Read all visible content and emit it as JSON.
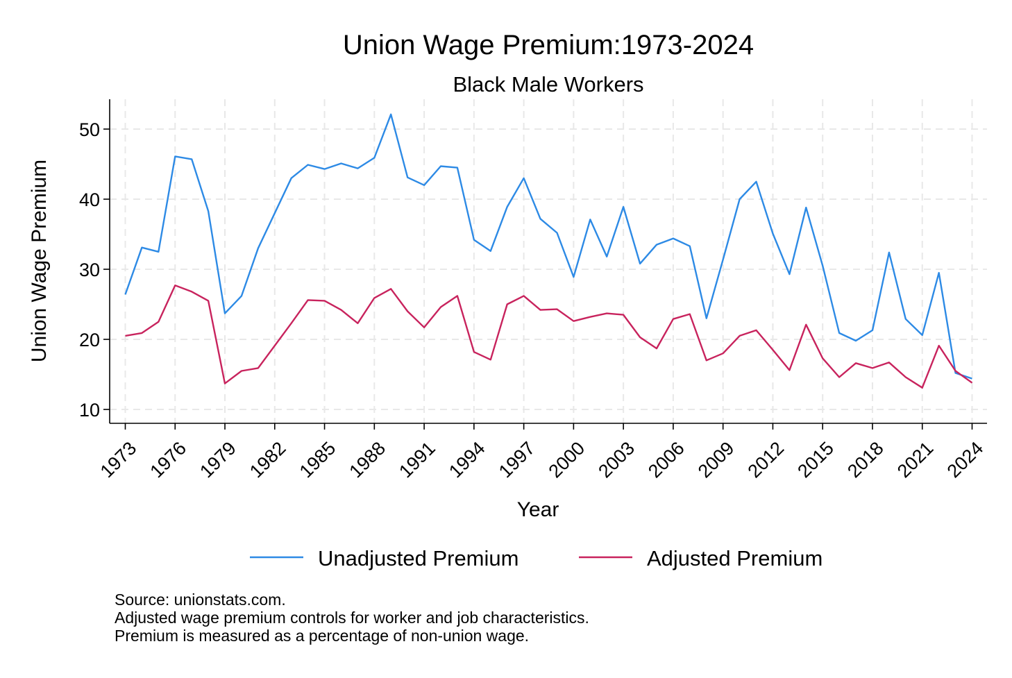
{
  "chart_data": {
    "type": "line",
    "title": "Union Wage Premium:1973-2024",
    "subtitle": "Black Male Workers",
    "xlabel": "Year",
    "ylabel": "Union Wage Premium",
    "xlim": [
      1973,
      2024
    ],
    "ylim": [
      8,
      54
    ],
    "x_ticks": [
      "1973",
      "1976",
      "1979",
      "1982",
      "1985",
      "1988",
      "1991",
      "1994",
      "1997",
      "2000",
      "2003",
      "2006",
      "2009",
      "2012",
      "2015",
      "2018",
      "2021",
      "2024"
    ],
    "y_ticks": [
      "10",
      "20",
      "30",
      "40",
      "50"
    ],
    "grid": true,
    "legend_position": "bottom",
    "x": [
      1973,
      1974,
      1975,
      1976,
      1977,
      1978,
      1979,
      1980,
      1981,
      1982,
      1983,
      1984,
      1985,
      1986,
      1987,
      1988,
      1989,
      1990,
      1991,
      1992,
      1993,
      1994,
      1995,
      1996,
      1997,
      1998,
      1999,
      2000,
      2001,
      2002,
      2003,
      2004,
      2005,
      2006,
      2007,
      2008,
      2009,
      2010,
      2011,
      2012,
      2013,
      2014,
      2015,
      2016,
      2017,
      2018,
      2019,
      2020,
      2021,
      2022,
      2023,
      2024
    ],
    "series": [
      {
        "name": "Unadjusted Premium",
        "color": "#2d8ae5",
        "values": [
          26.4,
          33.1,
          32.5,
          46.1,
          45.7,
          38.3,
          23.7,
          26.2,
          33.0,
          38.0,
          43.0,
          44.9,
          44.3,
          45.1,
          44.4,
          45.9,
          52.1,
          43.1,
          42.0,
          44.7,
          44.5,
          34.2,
          32.6,
          38.9,
          43.0,
          37.2,
          35.2,
          28.9,
          37.1,
          31.8,
          38.9,
          30.8,
          33.5,
          34.4,
          33.3,
          23.0,
          31.4,
          40.0,
          42.5,
          35.1,
          29.3,
          38.8,
          30.5,
          20.9,
          19.8,
          21.3,
          32.4,
          22.9,
          20.6,
          29.5,
          15.2,
          14.4
        ]
      },
      {
        "name": "Adjusted Premium",
        "color": "#c8235d",
        "values": [
          20.5,
          20.9,
          22.5,
          27.7,
          26.8,
          25.5,
          13.7,
          15.5,
          15.9,
          19.1,
          22.3,
          25.6,
          25.5,
          24.2,
          22.3,
          25.9,
          27.2,
          24.0,
          21.7,
          24.6,
          26.2,
          18.2,
          17.1,
          25.0,
          26.2,
          24.2,
          24.3,
          22.6,
          23.2,
          23.7,
          23.5,
          20.3,
          18.7,
          22.9,
          23.6,
          17.0,
          18.0,
          20.5,
          21.3,
          18.5,
          15.6,
          22.1,
          17.3,
          14.6,
          16.6,
          15.9,
          16.7,
          14.6,
          13.1,
          19.1,
          15.5,
          13.8
        ]
      }
    ],
    "notes": [
      "Source: unionstats.com.",
      "Adjusted wage premium controls for worker and job characteristics.",
      "Premium is measured as a percentage of non-union wage."
    ]
  }
}
